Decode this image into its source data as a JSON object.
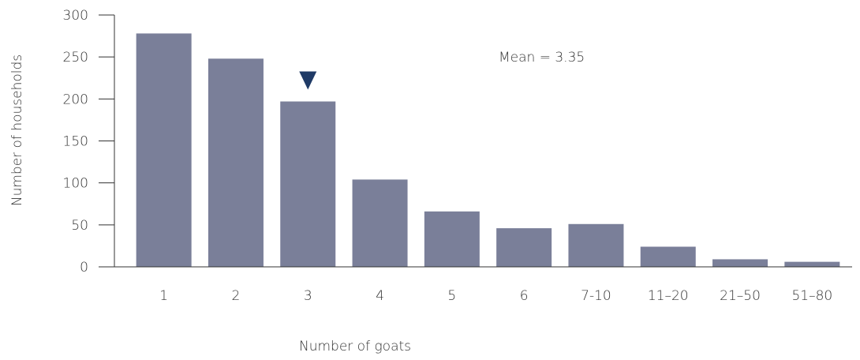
{
  "chart_data": {
    "type": "bar",
    "categories": [
      "1",
      "2",
      "3",
      "4",
      "5",
      "6",
      "7-10",
      "11–20",
      "21–50",
      "51–80"
    ],
    "values": [
      278,
      248,
      197,
      104,
      66,
      46,
      51,
      24,
      9,
      6
    ],
    "xlabel": "Number of goats",
    "ylabel": "Number of households",
    "ylim": [
      0,
      300
    ],
    "yticks": [
      0,
      50,
      100,
      150,
      200,
      250,
      300
    ],
    "annotation": "Mean = 3.35",
    "mean_marker_category": "3",
    "grid": false,
    "legend": "none",
    "colors": {
      "bar": "#7a7f99",
      "marker": "#1f3a66",
      "axis": "#333333"
    }
  }
}
